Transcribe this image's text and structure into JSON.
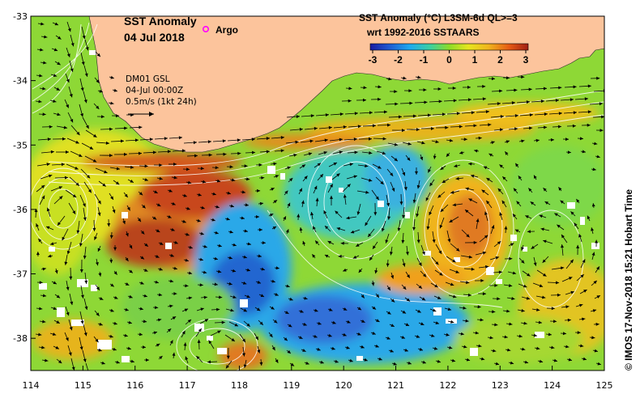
{
  "title": {
    "line1": "SST Anomaly",
    "line2": "04 Jul 2018",
    "argo_label": "Argo"
  },
  "product": {
    "line1": "SST Anomaly (°C) L3SM-6d QL>=3",
    "line2": "wrt 1992-2016 SSTAARS"
  },
  "colorbar": {
    "ticks": [
      "-3",
      "-2",
      "-1",
      "0",
      "1",
      "2",
      "3"
    ],
    "min": -3,
    "max": 3
  },
  "current_info": {
    "line1": "DM01 GSL",
    "line2": "04-Jul 00:00Z",
    "line3": "0.5m/s (1kt 24h)"
  },
  "axes": {
    "x_ticks": [
      "114",
      "115",
      "116",
      "117",
      "118",
      "119",
      "120",
      "121",
      "122",
      "123",
      "124",
      "125"
    ],
    "y_ticks": [
      "-33",
      "-34",
      "-35",
      "-36",
      "-37",
      "-38"
    ],
    "lon_range": [
      114,
      125
    ],
    "lat_range": [
      -38.5,
      -33
    ]
  },
  "credit": "© IMOS 17-Nov-2018 15:21 Hobart Time",
  "colors": {
    "land": "#fcc49c",
    "argo_marker": "#ff00ff",
    "contour": "#ffffff",
    "arrow": "#000000"
  }
}
